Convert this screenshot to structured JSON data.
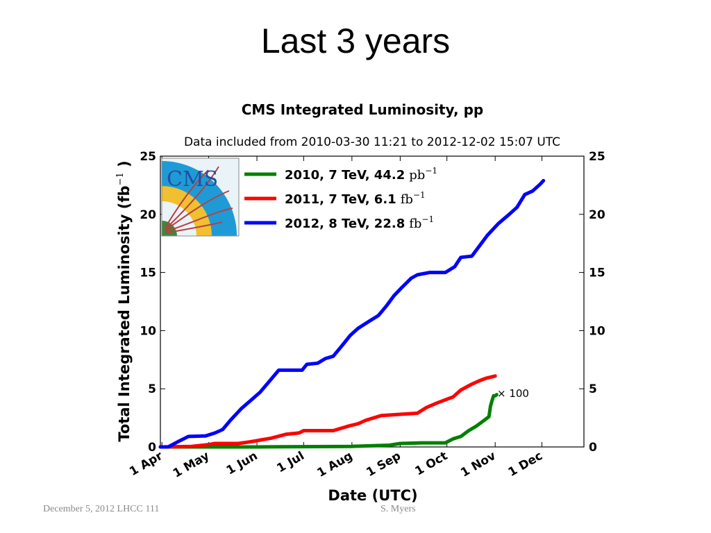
{
  "slide": {
    "title": "Last 3 years",
    "footer_left": "December 5, 2012  LHCC 111",
    "footer_right": "S. Myers"
  },
  "chart_data": {
    "type": "line",
    "title": "CMS Integrated Luminosity, pp",
    "subtitle": "Data included from 2010-03-30 11:21 to 2012-12-02 15:07 UTC",
    "xlabel": "Date (UTC)",
    "ylabel": "Total Integrated Luminosity (fb",
    "ylabel_sup": "−1",
    "ylabel_close": ")",
    "xlim": [
      "2012-03-31",
      "2012-12-28"
    ],
    "ylim": [
      0,
      25
    ],
    "grid": false,
    "legend_position": "top-left",
    "x_ticks": [
      {
        "label": "1 Apr",
        "date": "2012-04-01"
      },
      {
        "label": "1 May",
        "date": "2012-05-01"
      },
      {
        "label": "1 Jun",
        "date": "2012-06-01"
      },
      {
        "label": "1 Jul",
        "date": "2012-07-01"
      },
      {
        "label": "1 Aug",
        "date": "2012-08-01"
      },
      {
        "label": "1 Sep",
        "date": "2012-09-01"
      },
      {
        "label": "1 Oct",
        "date": "2012-10-01"
      },
      {
        "label": "1 Nov",
        "date": "2012-11-01"
      },
      {
        "label": "1 Dec",
        "date": "2012-12-01"
      }
    ],
    "y_ticks": [
      0,
      5,
      10,
      15,
      20,
      25
    ],
    "annotation": "× 100",
    "series": [
      {
        "name": "2010, 7 TeV, 44.2",
        "unit": "pb",
        "unit_sup": "−1",
        "color": "#008000",
        "points": [
          [
            "2012-03-31",
            0
          ],
          [
            "2012-06-01",
            0
          ],
          [
            "2012-08-01",
            0.05
          ],
          [
            "2012-08-25",
            0.15
          ],
          [
            "2012-09-01",
            0.3
          ],
          [
            "2012-09-15",
            0.35
          ],
          [
            "2012-09-30",
            0.35
          ],
          [
            "2012-10-05",
            0.7
          ],
          [
            "2012-10-10",
            0.9
          ],
          [
            "2012-10-15",
            1.4
          ],
          [
            "2012-10-20",
            1.8
          ],
          [
            "2012-10-25",
            2.3
          ],
          [
            "2012-10-28",
            2.6
          ],
          [
            "2012-10-29",
            3.5
          ],
          [
            "2012-10-30",
            4.0
          ],
          [
            "2012-10-31",
            4.4
          ],
          [
            "2012-11-01",
            4.4
          ],
          [
            "2012-11-02",
            4.5
          ]
        ]
      },
      {
        "name": "2011, 7 TeV, 6.1",
        "unit": "fb",
        "unit_sup": "−1",
        "color": "#ff0000",
        "points": [
          [
            "2012-03-31",
            0
          ],
          [
            "2012-04-20",
            0.05
          ],
          [
            "2012-05-01",
            0.2
          ],
          [
            "2012-05-05",
            0.3
          ],
          [
            "2012-05-20",
            0.3
          ],
          [
            "2012-05-28",
            0.45
          ],
          [
            "2012-06-10",
            0.75
          ],
          [
            "2012-06-20",
            1.1
          ],
          [
            "2012-06-28",
            1.2
          ],
          [
            "2012-07-01",
            1.4
          ],
          [
            "2012-07-20",
            1.4
          ],
          [
            "2012-07-30",
            1.8
          ],
          [
            "2012-08-05",
            2.0
          ],
          [
            "2012-08-10",
            2.3
          ],
          [
            "2012-08-20",
            2.7
          ],
          [
            "2012-08-31",
            2.8
          ],
          [
            "2012-09-12",
            2.9
          ],
          [
            "2012-09-18",
            3.4
          ],
          [
            "2012-09-25",
            3.8
          ],
          [
            "2012-10-05",
            4.3
          ],
          [
            "2012-10-10",
            4.9
          ],
          [
            "2012-10-17",
            5.4
          ],
          [
            "2012-10-22",
            5.7
          ],
          [
            "2012-10-26",
            5.9
          ],
          [
            "2012-11-01",
            6.1
          ]
        ]
      },
      {
        "name": "2012, 8 TeV, 22.8",
        "unit": "fb",
        "unit_sup": "−1",
        "color": "#0000ff",
        "points": [
          [
            "2012-03-31",
            0
          ],
          [
            "2012-04-05",
            0
          ],
          [
            "2012-04-12",
            0.5
          ],
          [
            "2012-04-18",
            0.9
          ],
          [
            "2012-04-29",
            0.95
          ],
          [
            "2012-05-05",
            1.2
          ],
          [
            "2012-05-10",
            1.5
          ],
          [
            "2012-05-15",
            2.3
          ],
          [
            "2012-05-22",
            3.3
          ],
          [
            "2012-05-28",
            4.0
          ],
          [
            "2012-06-03",
            4.7
          ],
          [
            "2012-06-10",
            5.8
          ],
          [
            "2012-06-15",
            6.6
          ],
          [
            "2012-06-30",
            6.6
          ],
          [
            "2012-07-03",
            7.1
          ],
          [
            "2012-07-10",
            7.2
          ],
          [
            "2012-07-15",
            7.6
          ],
          [
            "2012-07-20",
            7.8
          ],
          [
            "2012-07-25",
            8.6
          ],
          [
            "2012-07-31",
            9.6
          ],
          [
            "2012-08-05",
            10.2
          ],
          [
            "2012-08-12",
            10.8
          ],
          [
            "2012-08-18",
            11.3
          ],
          [
            "2012-08-23",
            12.1
          ],
          [
            "2012-08-28",
            13.0
          ],
          [
            "2012-09-02",
            13.7
          ],
          [
            "2012-09-08",
            14.5
          ],
          [
            "2012-09-12",
            14.8
          ],
          [
            "2012-09-20",
            15.0
          ],
          [
            "2012-09-30",
            15.0
          ],
          [
            "2012-10-06",
            15.5
          ],
          [
            "2012-10-10",
            16.3
          ],
          [
            "2012-10-17",
            16.4
          ],
          [
            "2012-10-22",
            17.3
          ],
          [
            "2012-10-27",
            18.2
          ],
          [
            "2012-11-03",
            19.2
          ],
          [
            "2012-11-10",
            20.0
          ],
          [
            "2012-11-15",
            20.6
          ],
          [
            "2012-11-20",
            21.7
          ],
          [
            "2012-11-25",
            22.0
          ],
          [
            "2012-11-30",
            22.6
          ],
          [
            "2012-12-02",
            22.9
          ]
        ]
      }
    ]
  },
  "logo": {
    "text": "CMS",
    "colors": {
      "background": "#1e9bd7",
      "ring": "#f0c030",
      "tracks": "#b84040",
      "inner": "#3a8a3a"
    }
  }
}
